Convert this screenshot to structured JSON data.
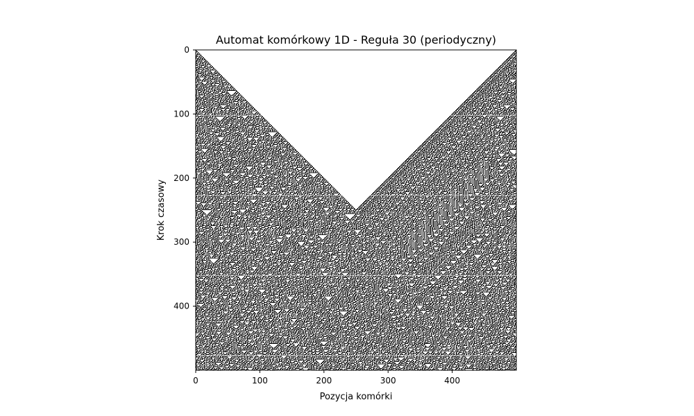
{
  "chart_data": {
    "type": "heatmap",
    "title": "Automat komórkowy 1D - Reguła 30 (periodyczny)",
    "xlabel": "Pozycja komórki",
    "ylabel": "Krok czasowy",
    "rule": 30,
    "boundary": "periodic",
    "width": 500,
    "steps": 500,
    "initial_live_cells": [
      0,
      499
    ],
    "xlim": [
      0,
      500
    ],
    "ylim": [
      500,
      0
    ],
    "x_ticks": [
      0,
      100,
      200,
      300,
      400
    ],
    "y_ticks": [
      0,
      100,
      200,
      300,
      400
    ],
    "colors": {
      "live": "#000000",
      "dead": "#ffffff"
    },
    "grid": false,
    "legend": "none"
  }
}
